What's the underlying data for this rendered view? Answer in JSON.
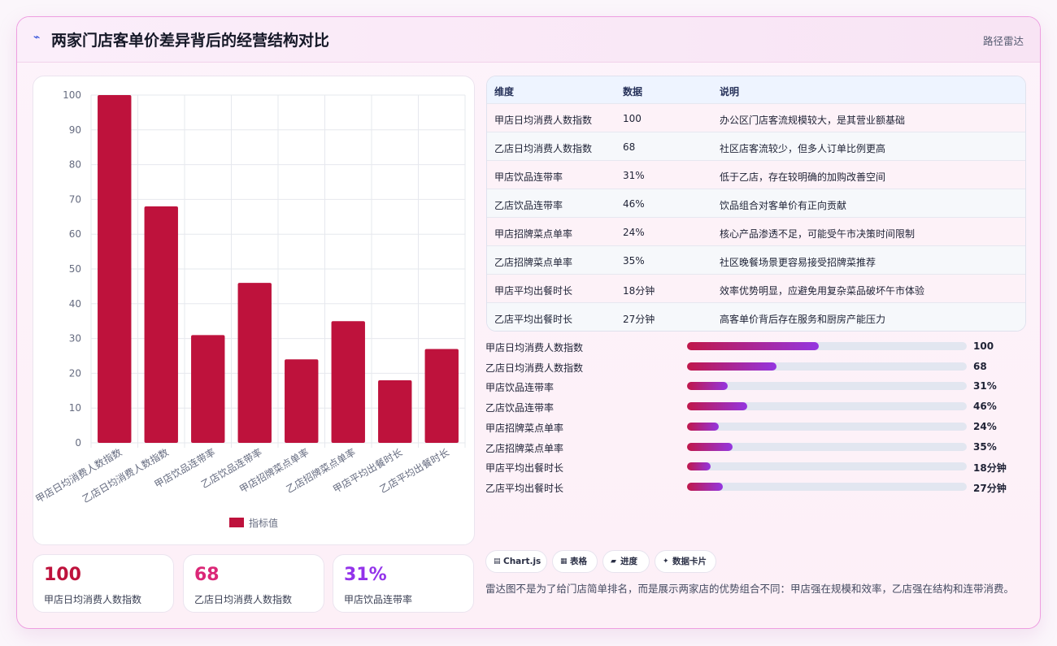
{
  "header": {
    "title": "两家门店客单价差异背后的经营结构对比",
    "right_label": "路径雷达",
    "logo_icon": "waveform-icon"
  },
  "chart_data": {
    "type": "bar",
    "categories": [
      "甲店日均消费人数指数",
      "乙店日均消费人数指数",
      "甲店饮品连带率",
      "乙店饮品连带率",
      "甲店招牌菜点单率",
      "乙店招牌菜点单率",
      "甲店平均出餐时长",
      "乙店平均出餐时长"
    ],
    "series": [
      {
        "name": "指标值",
        "values": [
          100,
          68,
          31,
          46,
          24,
          35,
          18,
          27
        ],
        "color": "#be123c"
      }
    ],
    "yticks": [
      0,
      10,
      20,
      30,
      40,
      50,
      60,
      70,
      80,
      90,
      100
    ],
    "ylim": [
      0,
      100
    ],
    "grid": true,
    "legend_position": "bottom"
  },
  "kpis": [
    {
      "value": "100",
      "label": "甲店日均消费人数指数",
      "color": "#be123c"
    },
    {
      "value": "68",
      "label": "乙店日均消费人数指数",
      "color": "#db2777"
    },
    {
      "value": "31%",
      "label": "甲店饮品连带率",
      "color": "#9333ea"
    }
  ],
  "table": {
    "headers": [
      "维度",
      "数据",
      "说明"
    ],
    "rows": [
      [
        "甲店日均消费人数指数",
        "100",
        "办公区门店客流规模较大，是其营业额基础"
      ],
      [
        "乙店日均消费人数指数",
        "68",
        "社区店客流较少，但多人订单比例更高"
      ],
      [
        "甲店饮品连带率",
        "31%",
        "低于乙店，存在较明确的加购改善空间"
      ],
      [
        "乙店饮品连带率",
        "46%",
        "饮品组合对客单价有正向贡献"
      ],
      [
        "甲店招牌菜点单率",
        "24%",
        "核心产品渗透不足，可能受午市决策时间限制"
      ],
      [
        "乙店招牌菜点单率",
        "35%",
        "社区晚餐场景更容易接受招牌菜推荐"
      ],
      [
        "甲店平均出餐时长",
        "18分钟",
        "效率优势明显，应避免用复杂菜品破坏午市体验"
      ],
      [
        "乙店平均出餐时长",
        "27分钟",
        "高客单价背后存在服务和厨房产能压力"
      ]
    ]
  },
  "progress": [
    {
      "label": "甲店日均消费人数指数",
      "value": "100",
      "fraction": 0.47
    },
    {
      "label": "乙店日均消费人数指数",
      "value": "68",
      "fraction": 0.32
    },
    {
      "label": "甲店饮品连带率",
      "value": "31%",
      "fraction": 0.145
    },
    {
      "label": "乙店饮品连带率",
      "value": "46%",
      "fraction": 0.215
    },
    {
      "label": "甲店招牌菜点单率",
      "value": "24%",
      "fraction": 0.112
    },
    {
      "label": "乙店招牌菜点单率",
      "value": "35%",
      "fraction": 0.164
    },
    {
      "label": "甲店平均出餐时长",
      "value": "18分钟",
      "fraction": 0.084
    },
    {
      "label": "乙店平均出餐时长",
      "value": "27分钟",
      "fraction": 0.127
    }
  ],
  "tags": [
    {
      "icon": "chart-icon",
      "label": "Chart.js"
    },
    {
      "icon": "table-icon",
      "label": "表格"
    },
    {
      "icon": "progress-icon",
      "label": "进度"
    },
    {
      "icon": "card-icon",
      "label": "数据卡片"
    }
  ],
  "note": "雷达图不是为了给门店简单排名，而是展示两家店的优势组合不同：甲店强在规模和效率，乙店强在结构和连带消费。"
}
